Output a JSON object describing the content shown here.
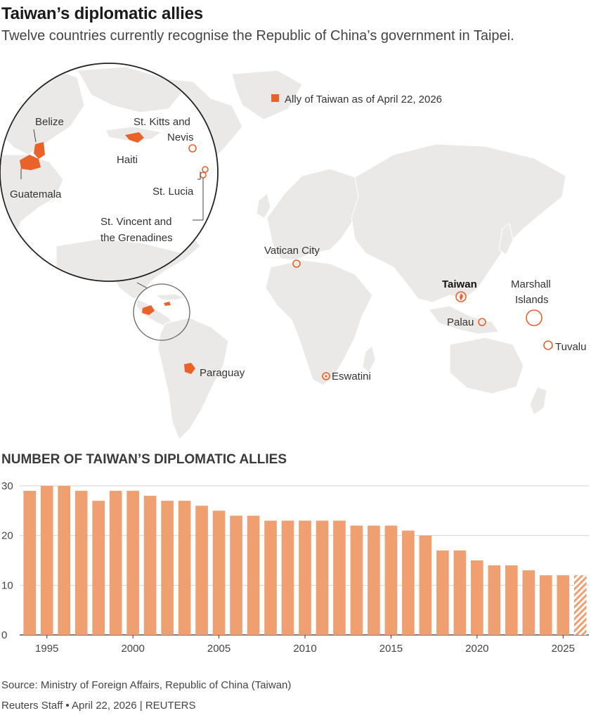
{
  "header": {
    "title": "Taiwan’s diplomatic allies",
    "subtitle": "Twelve countries currently recognise the Republic of China’s government in Taipei."
  },
  "map": {
    "legend": {
      "label": "Ally of Taiwan as of April 22, 2026",
      "color": "#e8622a"
    },
    "labels": {
      "belize": "Belize",
      "guatemala": "Guatemala",
      "haiti": "Haiti",
      "st_kitts_1": "St. Kitts and",
      "st_kitts_2": "Nevis",
      "st_lucia": "St. Lucia",
      "st_vincent_1": "St. Vincent and",
      "st_vincent_2": "the Grenadines",
      "vatican": "Vatican City",
      "taiwan": "Taiwan",
      "marshall_1": "Marshall",
      "marshall_2": "Islands",
      "palau": "Palau",
      "tuvalu": "Tuvalu",
      "paraguay": "Paraguay",
      "eswatini": "Eswatini"
    },
    "colors": {
      "land": "#ebe9e7",
      "ally": "#e8622a",
      "border": "#ffffff"
    }
  },
  "chart_data": {
    "type": "bar",
    "title": "NUMBER OF TAIWAN’S DIPLOMATIC ALLIES",
    "x": [
      1994,
      1995,
      1996,
      1997,
      1998,
      1999,
      2000,
      2001,
      2002,
      2003,
      2004,
      2005,
      2006,
      2007,
      2008,
      2009,
      2010,
      2011,
      2012,
      2013,
      2014,
      2015,
      2016,
      2017,
      2018,
      2019,
      2020,
      2021,
      2022,
      2023,
      2024,
      2025,
      2026
    ],
    "values": [
      29,
      30,
      30,
      29,
      27,
      29,
      29,
      28,
      27,
      27,
      26,
      25,
      24,
      24,
      23,
      23,
      23,
      23,
      23,
      22,
      22,
      22,
      21,
      20,
      17,
      17,
      15,
      14,
      14,
      13,
      12,
      12,
      12
    ],
    "hatched_last": true,
    "xticks": [
      "1995",
      "2000",
      "2005",
      "2010",
      "2015",
      "2020",
      "2025"
    ],
    "yticks": [
      "0",
      "10",
      "20",
      "30"
    ],
    "ylim": [
      0,
      30
    ],
    "grid": true,
    "bar_color": "#f0a070",
    "xlabel": "",
    "ylabel": ""
  },
  "footer": {
    "source": "Source: Ministry of Foreign Affairs, Republic of China (Taiwan)",
    "byline": "Reuters Staff • April 22, 2026 | REUTERS"
  }
}
